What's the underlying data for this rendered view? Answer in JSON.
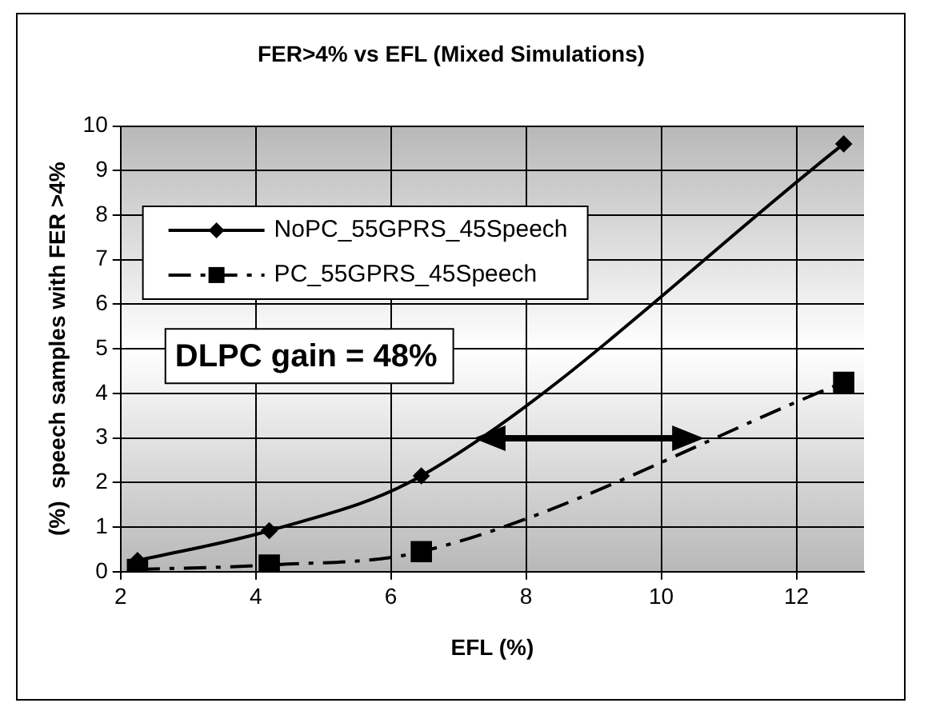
{
  "chart_data": {
    "type": "line",
    "title": "FER>4% vs EFL (Mixed Simulations)",
    "xlabel": "EFL (%)",
    "ylabel": "(%)  speech samples with FER >4%",
    "series": [
      {
        "name": "NoPC_55GPRS_45Speech",
        "color": "#000000",
        "x": [
          2.25,
          4.2,
          6.45,
          12.7
        ],
        "values": [
          0.25,
          0.92,
          2.15,
          9.6
        ],
        "marker": "diamond",
        "line_style": "solid"
      },
      {
        "name": "PC_55GPRS_45Speech",
        "color": "#000000",
        "x": [
          2.25,
          4.2,
          6.45,
          12.7
        ],
        "values": [
          0.05,
          0.15,
          0.45,
          4.25
        ],
        "marker": "square",
        "line_style": "dashed"
      }
    ],
    "xlim": [
      2,
      13
    ],
    "xticks": [
      2,
      4,
      6,
      8,
      10,
      12
    ],
    "ylim": [
      0,
      10
    ],
    "yticks": [
      0,
      1,
      2,
      3,
      4,
      5,
      6,
      7,
      8,
      9,
      10
    ],
    "grid": true,
    "legend": "top left",
    "annotations": [
      "DLPC gain = 48%"
    ]
  }
}
